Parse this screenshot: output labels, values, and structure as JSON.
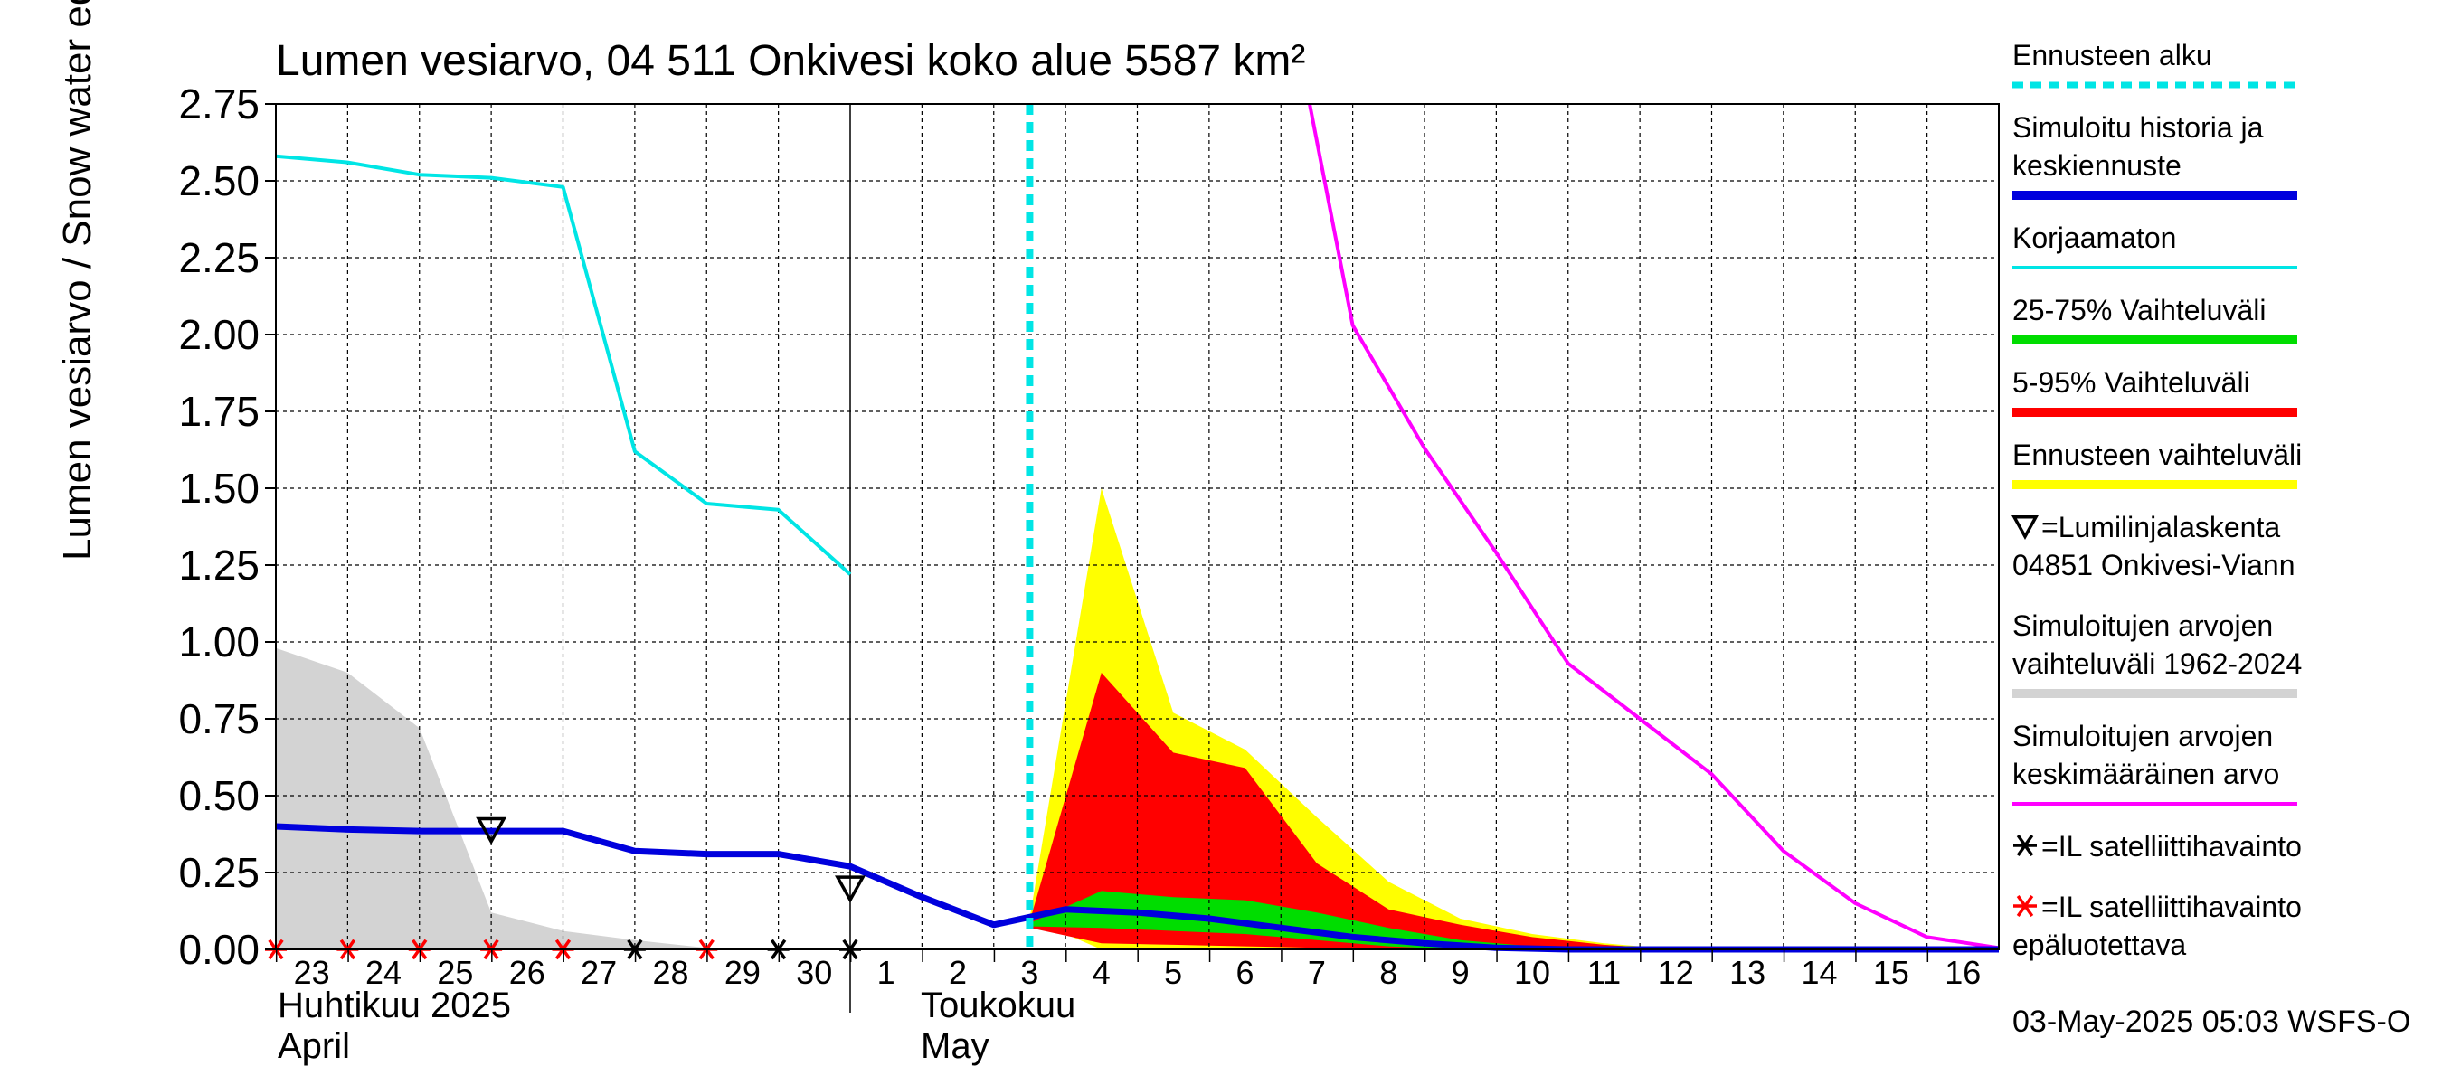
{
  "chart_data": {
    "type": "area",
    "title": "Lumen vesiarvo, 04 511 Onkivesi koko alue 5587 km²",
    "ylabel": "Lumen vesiarvo / Snow water equiv.    mm",
    "ylim": [
      0,
      2.75
    ],
    "yticks": [
      "0.00",
      "0.25",
      "0.50",
      "0.75",
      "1.00",
      "1.25",
      "1.50",
      "1.75",
      "2.00",
      "2.25",
      "2.50",
      "2.75"
    ],
    "xlim": [
      22.5,
      46.5
    ],
    "xtick_labels": [
      {
        "x": 23,
        "label": "23"
      },
      {
        "x": 24,
        "label": "24"
      },
      {
        "x": 25,
        "label": "25"
      },
      {
        "x": 26,
        "label": "26"
      },
      {
        "x": 27,
        "label": "27"
      },
      {
        "x": 28,
        "label": "28"
      },
      {
        "x": 29,
        "label": "29"
      },
      {
        "x": 30,
        "label": "30"
      },
      {
        "x": 31,
        "label": "1"
      },
      {
        "x": 32,
        "label": "2"
      },
      {
        "x": 33,
        "label": "3"
      },
      {
        "x": 34,
        "label": "4"
      },
      {
        "x": 35,
        "label": "5"
      },
      {
        "x": 36,
        "label": "6"
      },
      {
        "x": 37,
        "label": "7"
      },
      {
        "x": 38,
        "label": "8"
      },
      {
        "x": 39,
        "label": "9"
      },
      {
        "x": 40,
        "label": "10"
      },
      {
        "x": 41,
        "label": "11"
      },
      {
        "x": 42,
        "label": "12"
      },
      {
        "x": 43,
        "label": "13"
      },
      {
        "x": 44,
        "label": "14"
      },
      {
        "x": 45,
        "label": "15"
      },
      {
        "x": 46,
        "label": "16"
      }
    ],
    "month_labels": {
      "april_fi": "Huhtikuu  2025",
      "april_en": "April",
      "may_fi": "Toukokuu",
      "may_en": "May"
    },
    "forecast_start_x": 33,
    "month_boundary_x": 30.5,
    "series": [
      {
        "name": "Simuloitujen arvojen vaihteluväli 1962-2024",
        "type": "band",
        "color": "#d3d3d3",
        "upper": [
          [
            22.5,
            0.98
          ],
          [
            23.5,
            0.9
          ],
          [
            24.5,
            0.72
          ],
          [
            25.5,
            0.12
          ],
          [
            26.5,
            0.06
          ],
          [
            27.5,
            0.03
          ],
          [
            28.5,
            0.005
          ],
          [
            29.5,
            0.0
          ],
          [
            46.5,
            0.0
          ]
        ],
        "lower": [
          [
            22.5,
            0.0
          ],
          [
            46.5,
            0.0
          ]
        ]
      },
      {
        "name": "Ennusteen vaihteluväli",
        "type": "band",
        "color": "#ffff00",
        "upper": [
          [
            33,
            0.1
          ],
          [
            34,
            1.5
          ],
          [
            35,
            0.77
          ],
          [
            36,
            0.65
          ],
          [
            37,
            0.43
          ],
          [
            38,
            0.22
          ],
          [
            39,
            0.1
          ],
          [
            40,
            0.05
          ],
          [
            41,
            0.02
          ],
          [
            42,
            0.0
          ]
        ],
        "lower": [
          [
            33,
            0.1
          ],
          [
            34,
            0.0
          ],
          [
            42,
            0.0
          ]
        ]
      },
      {
        "name": "5-95% Vaihteluväli",
        "type": "band",
        "color": "#ff0000",
        "upper": [
          [
            33,
            0.09
          ],
          [
            34,
            0.9
          ],
          [
            35,
            0.64
          ],
          [
            36,
            0.59
          ],
          [
            37,
            0.28
          ],
          [
            38,
            0.13
          ],
          [
            39,
            0.08
          ],
          [
            40,
            0.04
          ],
          [
            41,
            0.015
          ],
          [
            42,
            0.0
          ]
        ],
        "lower": [
          [
            33,
            0.07
          ],
          [
            34,
            0.02
          ],
          [
            35,
            0.015
          ],
          [
            36,
            0.01
          ],
          [
            37,
            0.005
          ],
          [
            38,
            0.0
          ],
          [
            42,
            0.0
          ]
        ]
      },
      {
        "name": "25-75% Vaihteluväli",
        "type": "band",
        "color": "#00dd00",
        "upper": [
          [
            33,
            0.085
          ],
          [
            34,
            0.19
          ],
          [
            35,
            0.17
          ],
          [
            36,
            0.16
          ],
          [
            37,
            0.12
          ],
          [
            38,
            0.07
          ],
          [
            39,
            0.03
          ],
          [
            40,
            0.01
          ],
          [
            41,
            0.0
          ]
        ],
        "lower": [
          [
            33,
            0.075
          ],
          [
            34,
            0.07
          ],
          [
            35,
            0.06
          ],
          [
            36,
            0.05
          ],
          [
            37,
            0.03
          ],
          [
            38,
            0.01
          ],
          [
            39,
            0.0
          ],
          [
            41,
            0.0
          ]
        ]
      },
      {
        "name": "Korjaamaton",
        "type": "line",
        "color": "#00e5e5",
        "width": 4,
        "points": [
          [
            22.5,
            2.58
          ],
          [
            23.5,
            2.56
          ],
          [
            24.5,
            2.52
          ],
          [
            25.5,
            2.51
          ],
          [
            26.5,
            2.48
          ],
          [
            27.5,
            1.62
          ],
          [
            28.5,
            1.45
          ],
          [
            29.5,
            1.43
          ],
          [
            30.5,
            1.22
          ]
        ]
      },
      {
        "name": "Simuloitujen arvojen keskimääräinen arvo",
        "type": "line",
        "color": "#ff00ff",
        "width": 4,
        "points": [
          [
            36.9,
            2.75
          ],
          [
            37.5,
            2.03
          ],
          [
            38.5,
            1.63
          ],
          [
            39.5,
            1.29
          ],
          [
            40.5,
            0.93
          ],
          [
            41.5,
            0.75
          ],
          [
            42.5,
            0.57
          ],
          [
            43.5,
            0.32
          ],
          [
            44.5,
            0.15
          ],
          [
            45.5,
            0.04
          ],
          [
            46.5,
            0.005
          ]
        ]
      },
      {
        "name": "Simuloitu historia ja keskiennuste",
        "type": "line",
        "color": "#0000dd",
        "width": 7,
        "points": [
          [
            22.5,
            0.4
          ],
          [
            23.5,
            0.39
          ],
          [
            24.5,
            0.385
          ],
          [
            25.5,
            0.385
          ],
          [
            26.5,
            0.385
          ],
          [
            27.5,
            0.32
          ],
          [
            28.5,
            0.31
          ],
          [
            29.5,
            0.31
          ],
          [
            30.5,
            0.27
          ],
          [
            31.5,
            0.17
          ],
          [
            32.5,
            0.08
          ],
          [
            33.5,
            0.13
          ],
          [
            34.5,
            0.12
          ],
          [
            35.5,
            0.1
          ],
          [
            36.5,
            0.07
          ],
          [
            37.5,
            0.04
          ],
          [
            38.5,
            0.02
          ],
          [
            39.5,
            0.005
          ],
          [
            40.5,
            0.0
          ],
          [
            46.5,
            0.0
          ]
        ]
      }
    ],
    "markers": [
      {
        "name": "=Lumilinjalaskenta",
        "symbol": "triangle",
        "color": "#000000",
        "points": [
          [
            25.5,
            0.39
          ],
          [
            30.5,
            0.2
          ]
        ]
      },
      {
        "name": "=IL satelliittihavainto",
        "symbol": "asterisk",
        "color": "#000000",
        "points": [
          [
            27.5,
            0.0
          ],
          [
            29.5,
            0.0
          ],
          [
            30.5,
            0.0
          ]
        ]
      },
      {
        "name": "=IL satelliittihavainto epäluotettava",
        "symbol": "asterisk",
        "color": "#ff0000",
        "points": [
          [
            22.5,
            0.0
          ],
          [
            23.5,
            0.0
          ],
          [
            24.5,
            0.0
          ],
          [
            25.5,
            0.0
          ],
          [
            26.5,
            0.0
          ],
          [
            28.5,
            0.0
          ]
        ]
      }
    ],
    "legend": [
      {
        "lines": [
          "Ennusteen alku"
        ],
        "color": "#00e5e5",
        "style": "dashed"
      },
      {
        "lines": [
          "Simuloitu historia ja",
          "keskiennuste"
        ],
        "color": "#0000dd",
        "style": "thick"
      },
      {
        "lines": [
          "Korjaamaton"
        ],
        "color": "#00e5e5",
        "style": "line"
      },
      {
        "lines": [
          "25-75% Vaihteluväli"
        ],
        "color": "#00dd00",
        "style": "thick"
      },
      {
        "lines": [
          "5-95% Vaihteluväli"
        ],
        "color": "#ff0000",
        "style": "thick"
      },
      {
        "lines": [
          "Ennusteen vaihteluväli"
        ],
        "color": "#ffff00",
        "style": "thick"
      },
      {
        "lines": [
          "=Lumilinjalaskenta",
          "04851 Onkivesi-Viann"
        ],
        "color": "#000000",
        "style": "triangle"
      },
      {
        "lines": [
          "Simuloitujen arvojen",
          "vaihteluväli 1962-2024"
        ],
        "color": "#d3d3d3",
        "style": "thick"
      },
      {
        "lines": [
          "Simuloitujen arvojen",
          "keskimääräinen arvo"
        ],
        "color": "#ff00ff",
        "style": "line"
      },
      {
        "lines": [
          "=IL satelliittihavainto"
        ],
        "color": "#000000",
        "style": "asterisk"
      },
      {
        "lines": [
          "=IL satelliittihavainto",
          "epäluotettava"
        ],
        "color": "#ff0000",
        "style": "asterisk"
      }
    ],
    "footer": "03-May-2025 05:03 WSFS-O",
    "grid": true
  }
}
